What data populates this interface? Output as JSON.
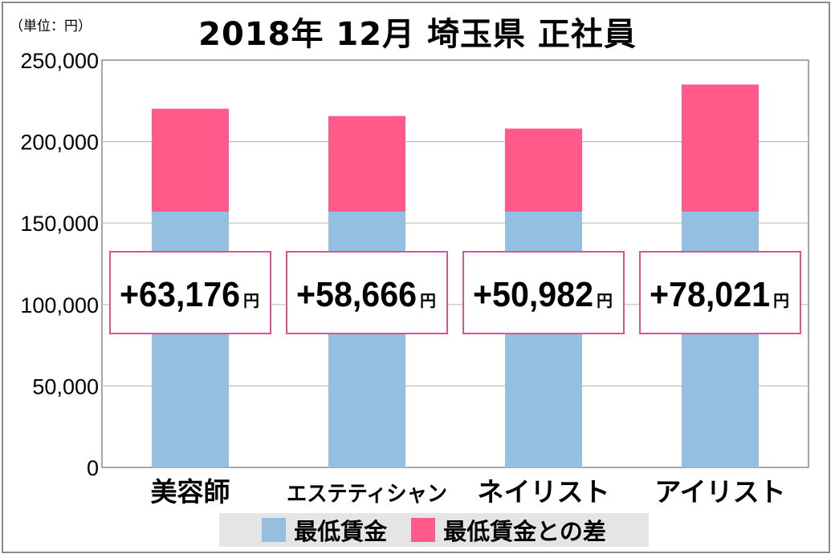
{
  "unit_label": "（単位：円）",
  "title": "2018年 12月 埼玉県 正社員",
  "colors": {
    "base": "#94bfe0",
    "diff": "#ff5a8a",
    "callout_border": "#d9559a",
    "grid": "#bdbdbd"
  },
  "legend": {
    "base_label": "最低賃金",
    "diff_label": "最低賃金との差"
  },
  "chart_data": {
    "type": "bar",
    "stacked": true,
    "categories": [
      "美容師",
      "エステティシャン",
      "ネイリスト",
      "アイリスト"
    ],
    "series": [
      {
        "name": "最低賃金",
        "values": [
          157000,
          157000,
          157000,
          157000
        ]
      },
      {
        "name": "最低賃金との差",
        "values": [
          63176,
          58666,
          50982,
          78021
        ]
      }
    ],
    "callouts": [
      {
        "value": "+63,176",
        "unit": "円"
      },
      {
        "value": "+58,666",
        "unit": "円"
      },
      {
        "value": "+50,982",
        "unit": "円"
      },
      {
        "value": "+78,021",
        "unit": "円"
      }
    ],
    "ylim": [
      0,
      250000
    ],
    "yticks": [
      0,
      50000,
      100000,
      150000,
      200000,
      250000
    ],
    "ytick_labels": [
      "0",
      "50,000",
      "100,000",
      "150,000",
      "200,000",
      "250,000"
    ],
    "grid": true,
    "legend_position": "bottom"
  }
}
